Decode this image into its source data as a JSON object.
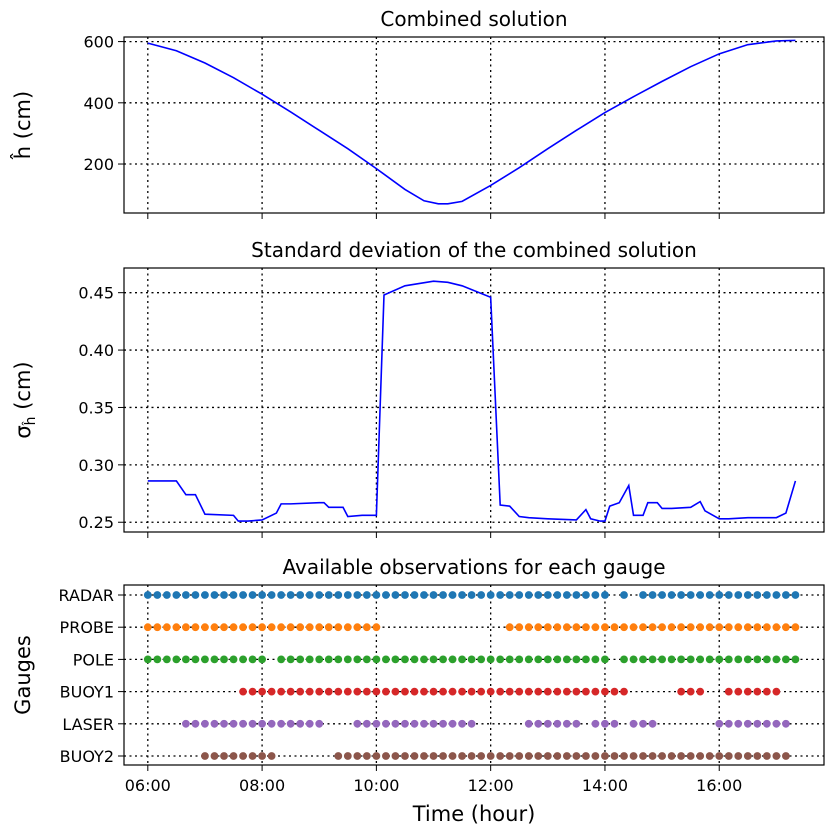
{
  "chart_data": [
    {
      "type": "line",
      "title": "Combined solution",
      "ylabel": "ĥ (cm)",
      "xlabel": "",
      "xlim": [
        "05:35",
        "17:50"
      ],
      "ylim": [
        40,
        615
      ],
      "yticks": [
        200,
        400,
        600
      ],
      "xticks": [
        "06:00",
        "08:00",
        "10:00",
        "12:00",
        "14:00",
        "16:00"
      ],
      "grid": true,
      "color": "#0000ff",
      "series": [
        {
          "x": [
            "06:00",
            "06:30",
            "07:00",
            "07:30",
            "08:00",
            "08:30",
            "09:00",
            "09:30",
            "10:00",
            "10:30",
            "10:50",
            "11:05",
            "11:15",
            "11:30",
            "12:00",
            "12:30",
            "13:00",
            "13:30",
            "14:00",
            "14:30",
            "15:00",
            "15:30",
            "16:00",
            "16:30",
            "17:00",
            "17:20"
          ],
          "values": [
            595,
            570,
            530,
            482,
            428,
            370,
            310,
            250,
            185,
            117,
            80,
            70,
            70,
            78,
            130,
            188,
            250,
            310,
            368,
            420,
            470,
            518,
            560,
            590,
            602,
            604
          ]
        }
      ]
    },
    {
      "type": "line",
      "title": "Standard deviation of the combined solution",
      "ylabel": "σĥ (cm)",
      "xlabel": "",
      "xlim": [
        "05:35",
        "17:50"
      ],
      "ylim": [
        0.2415,
        0.4715
      ],
      "yticks": [
        0.25,
        0.3,
        0.35,
        0.4,
        0.45
      ],
      "xticks": [
        "06:00",
        "08:00",
        "10:00",
        "12:00",
        "14:00",
        "16:00"
      ],
      "grid": true,
      "color": "#0000ff",
      "series": [
        {
          "x": [
            "06:00",
            "06:30",
            "06:40",
            "06:50",
            "07:00",
            "07:30",
            "07:35",
            "07:45",
            "08:00",
            "08:15",
            "08:20",
            "08:30",
            "09:00",
            "09:05",
            "09:10",
            "09:15",
            "09:25",
            "09:30",
            "09:45",
            "10:00",
            "10:08",
            "10:30",
            "11:00",
            "11:15",
            "11:30",
            "12:00",
            "12:10",
            "12:20",
            "12:30",
            "12:40",
            "13:00",
            "13:30",
            "13:40",
            "13:45",
            "13:55",
            "14:00",
            "14:05",
            "14:15",
            "14:25",
            "14:30",
            "14:40",
            "14:45",
            "14:55",
            "15:00",
            "15:10",
            "15:30",
            "15:40",
            "15:45",
            "16:00",
            "16:10",
            "16:30",
            "16:50",
            "17:00",
            "17:10",
            "17:20"
          ],
          "values": [
            0.286,
            0.286,
            0.274,
            0.274,
            0.257,
            0.256,
            0.251,
            0.251,
            0.252,
            0.258,
            0.266,
            0.266,
            0.267,
            0.267,
            0.263,
            0.263,
            0.263,
            0.255,
            0.256,
            0.256,
            0.448,
            0.456,
            0.46,
            0.459,
            0.456,
            0.446,
            0.265,
            0.264,
            0.255,
            0.254,
            0.253,
            0.252,
            0.261,
            0.253,
            0.251,
            0.251,
            0.264,
            0.267,
            0.282,
            0.256,
            0.256,
            0.267,
            0.267,
            0.262,
            0.262,
            0.263,
            0.268,
            0.26,
            0.253,
            0.253,
            0.254,
            0.254,
            0.254,
            0.258,
            0.286
          ]
        }
      ]
    },
    {
      "type": "scatter",
      "title": "Available observations for each gauge",
      "ylabel": "Gauges",
      "xlabel": "Time (hour)",
      "xlim": [
        "05:35",
        "17:50"
      ],
      "xticks": [
        "06:00",
        "08:00",
        "10:00",
        "12:00",
        "14:00",
        "16:00"
      ],
      "grid": true,
      "categories": [
        "RADAR",
        "PROBE",
        "POLE",
        "BUOY1",
        "LASER",
        "BUOY2"
      ],
      "interval_minutes": 10,
      "series": [
        {
          "name": "RADAR",
          "color": "#1f77b4",
          "ranges": [
            [
              "06:00",
              "14:00"
            ],
            [
              "14:20",
              "14:20"
            ],
            [
              "14:40",
              "17:20"
            ]
          ]
        },
        {
          "name": "PROBE",
          "color": "#ff7f0e",
          "ranges": [
            [
              "06:00",
              "10:00"
            ],
            [
              "12:20",
              "17:20"
            ]
          ]
        },
        {
          "name": "POLE",
          "color": "#2ca02c",
          "ranges": [
            [
              "06:00",
              "08:00"
            ],
            [
              "08:20",
              "14:00"
            ],
            [
              "14:20",
              "17:20"
            ]
          ]
        },
        {
          "name": "BUOY1",
          "color": "#d62728",
          "ranges": [
            [
              "07:40",
              "14:20"
            ],
            [
              "15:20",
              "15:40"
            ],
            [
              "16:10",
              "17:00"
            ]
          ]
        },
        {
          "name": "LASER",
          "color": "#9467bd",
          "ranges": [
            [
              "06:40",
              "07:50"
            ],
            [
              "08:00",
              "09:00"
            ],
            [
              "09:40",
              "11:40"
            ],
            [
              "12:40",
              "13:30"
            ],
            [
              "13:50",
              "14:10"
            ],
            [
              "14:30",
              "14:50"
            ],
            [
              "16:00",
              "17:10"
            ]
          ]
        },
        {
          "name": "BUOY2",
          "color": "#8c564b",
          "ranges": [
            [
              "07:00",
              "08:10"
            ],
            [
              "09:20",
              "17:10"
            ]
          ]
        }
      ]
    }
  ]
}
